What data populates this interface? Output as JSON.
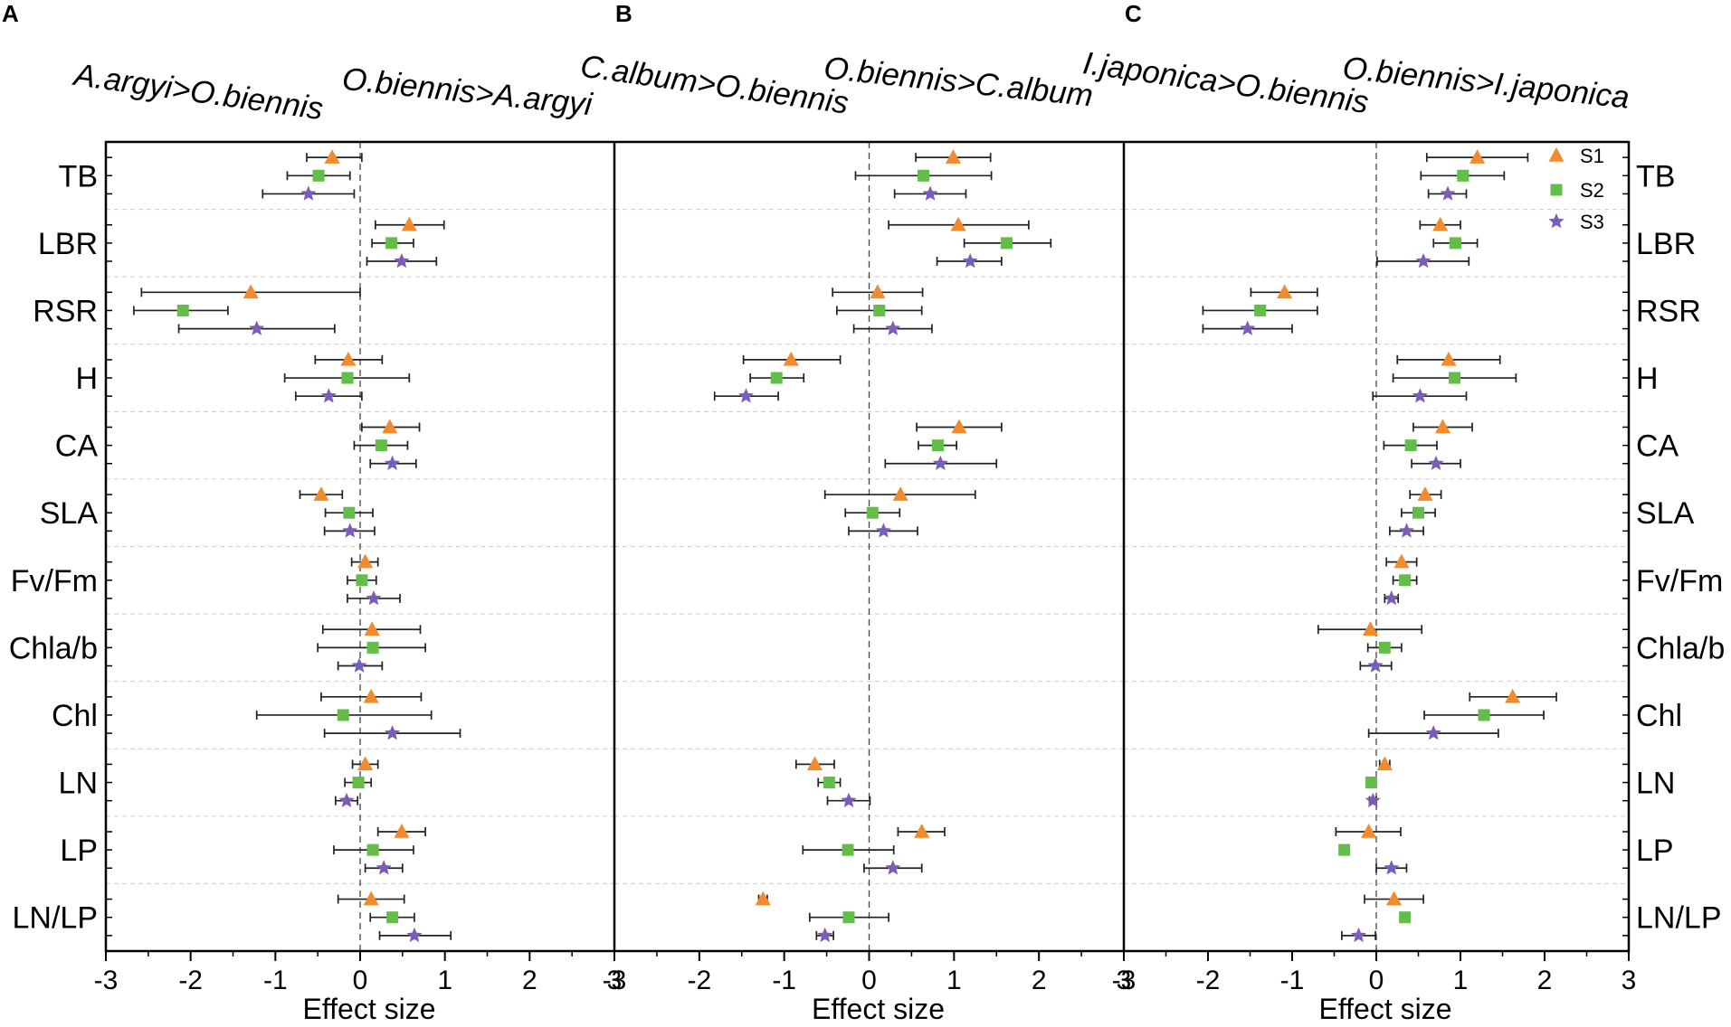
{
  "colors": {
    "S1": "#f28a2e",
    "S2": "#62bd49",
    "S3": "#7b5cb8",
    "frame": "#000000",
    "grid": "#cccccc",
    "zero": "#444444"
  },
  "legend": {
    "placement": "top-right of panel C",
    "items": [
      "S1",
      "S2",
      "S3"
    ],
    "markers": [
      "triangle",
      "square",
      "star"
    ]
  },
  "chart_data": {
    "type": "scatter",
    "subtype": "forest plot (effect size with error bars)",
    "xlabel": "Effect size",
    "xlim": [
      -3,
      3
    ],
    "xticks": [
      "-3",
      "-2",
      "-1",
      "0",
      "1",
      "2",
      "3"
    ],
    "traits": [
      "TB",
      "LBR",
      "RSR",
      "H",
      "CA",
      "SLA",
      "Fv/Fm",
      "Chla/b",
      "Chl",
      "LN",
      "LP",
      "LN/LP"
    ],
    "series_names": [
      "S1",
      "S2",
      "S3"
    ],
    "panels": [
      {
        "letter": "A",
        "left_label": "A.argyi>O.biennis",
        "right_label": "O.biennis>A.argyi",
        "points": [
          [
            [
              -0.33,
              -0.63,
              0.02
            ],
            [
              -0.49,
              -0.86,
              -0.12
            ],
            [
              -0.61,
              -1.15,
              -0.07
            ]
          ],
          [
            [
              0.58,
              0.18,
              0.99
            ],
            [
              0.37,
              0.14,
              0.63
            ],
            [
              0.49,
              0.08,
              0.9
            ]
          ],
          [
            [
              -1.29,
              -2.58,
              0.0
            ],
            [
              -2.09,
              -2.67,
              -1.56
            ],
            [
              -1.22,
              -2.14,
              -0.3
            ]
          ],
          [
            [
              -0.14,
              -0.53,
              0.26
            ],
            [
              -0.15,
              -0.89,
              0.58
            ],
            [
              -0.37,
              -0.76,
              0.02
            ]
          ],
          [
            [
              0.35,
              0.02,
              0.7
            ],
            [
              0.25,
              -0.07,
              0.56
            ],
            [
              0.38,
              0.12,
              0.66
            ]
          ],
          [
            [
              -0.46,
              -0.71,
              -0.21
            ],
            [
              -0.13,
              -0.41,
              0.15
            ],
            [
              -0.12,
              -0.42,
              0.17
            ]
          ],
          [
            [
              0.06,
              -0.1,
              0.21
            ],
            [
              0.02,
              -0.15,
              0.19
            ],
            [
              0.16,
              -0.15,
              0.47
            ]
          ],
          [
            [
              0.14,
              -0.44,
              0.71
            ],
            [
              0.15,
              -0.5,
              0.77
            ],
            [
              -0.01,
              -0.26,
              0.26
            ]
          ],
          [
            [
              0.13,
              -0.46,
              0.72
            ],
            [
              -0.2,
              -1.22,
              0.84
            ],
            [
              0.38,
              -0.42,
              1.18
            ]
          ],
          [
            [
              0.06,
              -0.09,
              0.21
            ],
            [
              -0.02,
              -0.18,
              0.13
            ],
            [
              -0.16,
              -0.29,
              -0.03
            ]
          ],
          [
            [
              0.49,
              0.21,
              0.77
            ],
            [
              0.15,
              -0.31,
              0.63
            ],
            [
              0.28,
              0.06,
              0.5
            ]
          ],
          [
            [
              0.13,
              -0.26,
              0.52
            ],
            [
              0.38,
              0.12,
              0.64
            ],
            [
              0.64,
              0.23,
              1.07
            ]
          ]
        ]
      },
      {
        "letter": "B",
        "left_label": "C.album>O.biennis",
        "right_label": "O.biennis>C.album",
        "points": [
          [
            [
              0.99,
              0.55,
              1.43
            ],
            [
              0.64,
              -0.16,
              1.44
            ],
            [
              0.72,
              0.3,
              1.14
            ]
          ],
          [
            [
              1.05,
              0.23,
              1.88
            ],
            [
              1.62,
              1.12,
              2.14
            ],
            [
              1.19,
              0.8,
              1.56
            ]
          ],
          [
            [
              0.1,
              -0.43,
              0.63
            ],
            [
              0.12,
              -0.38,
              0.62
            ],
            [
              0.28,
              -0.18,
              0.74
            ]
          ],
          [
            [
              -0.92,
              -1.48,
              -0.34
            ],
            [
              -1.09,
              -1.4,
              -0.77
            ],
            [
              -1.45,
              -1.82,
              -1.07
            ]
          ],
          [
            [
              1.06,
              0.56,
              1.56
            ],
            [
              0.81,
              0.58,
              1.03
            ],
            [
              0.84,
              0.19,
              1.5
            ]
          ],
          [
            [
              0.37,
              -0.52,
              1.25
            ],
            [
              0.04,
              -0.28,
              0.36
            ],
            [
              0.17,
              -0.24,
              0.57
            ]
          ],
          null,
          null,
          null,
          [
            [
              -0.64,
              -0.86,
              -0.41
            ],
            [
              -0.47,
              -0.6,
              -0.34
            ],
            [
              -0.24,
              -0.49,
              0.01
            ]
          ],
          [
            [
              0.62,
              0.34,
              0.89
            ],
            [
              -0.25,
              -0.78,
              0.29
            ],
            [
              0.28,
              -0.06,
              0.62
            ]
          ],
          [
            [
              -1.25,
              -1.3,
              -1.2
            ],
            [
              -0.24,
              -0.7,
              0.23
            ],
            [
              -0.52,
              -0.62,
              -0.42
            ]
          ]
        ]
      },
      {
        "letter": "C",
        "left_label": "I.japonica>O.biennis",
        "right_label": "O.biennis>I.japonica",
        "points": [
          [
            [
              1.2,
              0.6,
              1.8
            ],
            [
              1.03,
              0.53,
              1.52
            ],
            [
              0.85,
              0.62,
              1.07
            ]
          ],
          [
            [
              0.76,
              0.52,
              1.0
            ],
            [
              0.94,
              0.68,
              1.2
            ],
            [
              0.56,
              0.01,
              1.1
            ]
          ],
          [
            [
              -1.09,
              -1.49,
              -0.7
            ],
            [
              -1.38,
              -2.06,
              -0.7
            ],
            [
              -1.53,
              -2.06,
              -1.0
            ]
          ],
          [
            [
              0.86,
              0.25,
              1.47
            ],
            [
              0.93,
              0.2,
              1.66
            ],
            [
              0.52,
              -0.04,
              1.07
            ]
          ],
          [
            [
              0.79,
              0.44,
              1.14
            ],
            [
              0.41,
              0.09,
              0.72
            ],
            [
              0.71,
              0.42,
              1.0
            ]
          ],
          [
            [
              0.58,
              0.4,
              0.77
            ],
            [
              0.5,
              0.3,
              0.7
            ],
            [
              0.36,
              0.16,
              0.56
            ]
          ],
          [
            [
              0.3,
              0.12,
              0.48
            ],
            [
              0.34,
              0.2,
              0.48
            ],
            [
              0.18,
              0.1,
              0.26
            ]
          ],
          [
            [
              -0.07,
              -0.69,
              0.54
            ],
            [
              0.1,
              -0.1,
              0.3
            ],
            [
              -0.01,
              -0.19,
              0.18
            ]
          ],
          [
            [
              1.62,
              1.11,
              2.14
            ],
            [
              1.28,
              0.57,
              1.99
            ],
            [
              0.68,
              -0.09,
              1.45
            ]
          ],
          [
            [
              0.1,
              0.04,
              0.16
            ],
            [
              -0.06,
              -0.1,
              -0.02
            ],
            [
              -0.04,
              -0.08,
              0.0
            ]
          ],
          [
            [
              -0.09,
              -0.48,
              0.29
            ],
            [
              -0.38,
              -0.42,
              -0.34
            ],
            [
              0.18,
              0.0,
              0.36
            ]
          ],
          [
            [
              0.21,
              -0.14,
              0.56
            ],
            [
              0.34,
              0.29,
              0.39
            ],
            [
              -0.21,
              -0.41,
              -0.01
            ]
          ]
        ]
      }
    ]
  }
}
